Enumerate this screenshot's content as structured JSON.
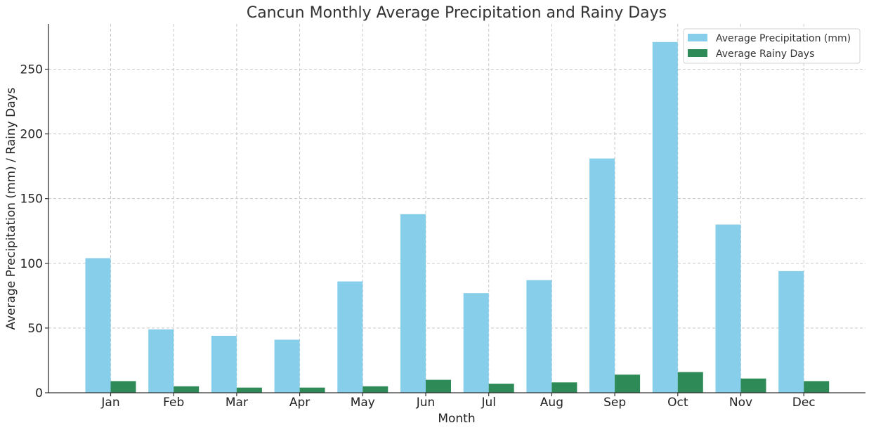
{
  "chart_data": {
    "type": "bar",
    "title": "Cancun Monthly Average Precipitation and Rainy Days",
    "xlabel": "Month",
    "ylabel": "Average Precipitation (mm) / Rainy Days",
    "categories": [
      "Jan",
      "Feb",
      "Mar",
      "Apr",
      "May",
      "Jun",
      "Jul",
      "Aug",
      "Sep",
      "Oct",
      "Nov",
      "Dec"
    ],
    "series": [
      {
        "name": "Average Precipitation (mm)",
        "color": "#87ceeb",
        "values": [
          104,
          49,
          44,
          41,
          86,
          138,
          77,
          87,
          181,
          271,
          130,
          94
        ]
      },
      {
        "name": "Average Rainy Days",
        "color": "#2e8b57",
        "values": [
          9,
          5,
          4,
          4,
          5,
          10,
          7,
          8,
          14,
          16,
          11,
          9
        ]
      }
    ],
    "ylim": [
      0,
      285
    ],
    "yticks": [
      0,
      50,
      100,
      150,
      200,
      250
    ],
    "grid": true,
    "legend_position": "top-right"
  }
}
